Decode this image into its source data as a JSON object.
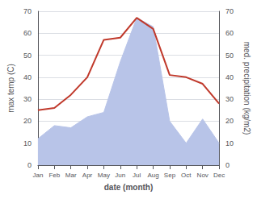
{
  "chart_data": {
    "type": "line",
    "xlabel": "date (month)",
    "ylabel": "max temp (C)",
    "y2label": "med. precipitation (kg/m2)",
    "categories": [
      "Jan",
      "Feb",
      "Mar",
      "Apr",
      "May",
      "Jun",
      "Jul",
      "Aug",
      "Sep",
      "Oct",
      "Nov",
      "Dec"
    ],
    "series": [
      {
        "type": "area",
        "color": "#b8c4e8",
        "axis": "y2",
        "values": [
          12,
          18,
          17,
          22,
          24,
          47,
          67,
          63,
          20,
          10,
          21,
          10
        ]
      },
      {
        "type": "line",
        "color": "#c0392b",
        "values": [
          25,
          26,
          32,
          40,
          57,
          58,
          67,
          62,
          41,
          40,
          37,
          28
        ]
      }
    ],
    "ylim": [
      0,
      70
    ],
    "yticks": [
      0,
      10,
      20,
      30,
      40,
      50,
      60,
      70
    ],
    "y2lim": [
      0,
      70
    ],
    "y2ticks": [
      0,
      10,
      20,
      30,
      40,
      50,
      60,
      70
    ],
    "grid": true
  }
}
